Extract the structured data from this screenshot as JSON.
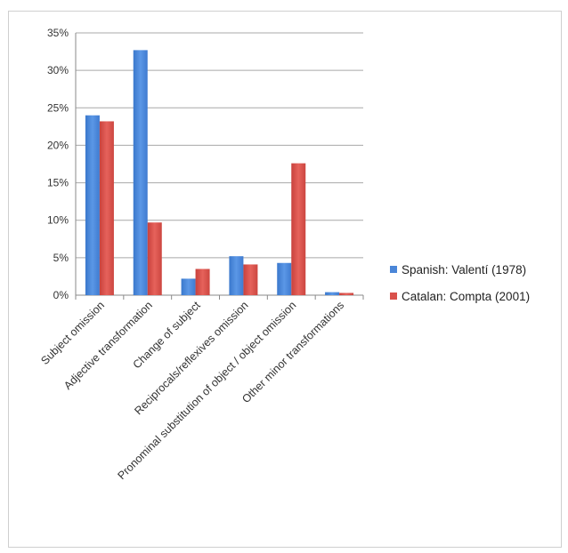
{
  "chart_data": {
    "type": "bar",
    "categories": [
      "Subject omission",
      "Adjective transformation",
      "Change of subject",
      "Reciprocals/reflexives omission",
      "Pronominal substitution of object / object omission",
      "Other minor transformations"
    ],
    "series": [
      {
        "name": "Spanish: Valentí (1978)",
        "color": "#4a86d8",
        "values": [
          24.0,
          32.7,
          2.2,
          5.2,
          4.3,
          0.4
        ]
      },
      {
        "name": "Catalan: Compta (2001)",
        "color": "#d9514b",
        "values": [
          23.2,
          9.7,
          3.5,
          4.1,
          17.6,
          0.3
        ]
      }
    ],
    "ylim": [
      0,
      35
    ],
    "yticks": [
      "0%",
      "5%",
      "10%",
      "15%",
      "20%",
      "25%",
      "30%",
      "35%"
    ],
    "grid": true,
    "legend_position": "right",
    "title": "",
    "xlabel": "",
    "ylabel": ""
  }
}
